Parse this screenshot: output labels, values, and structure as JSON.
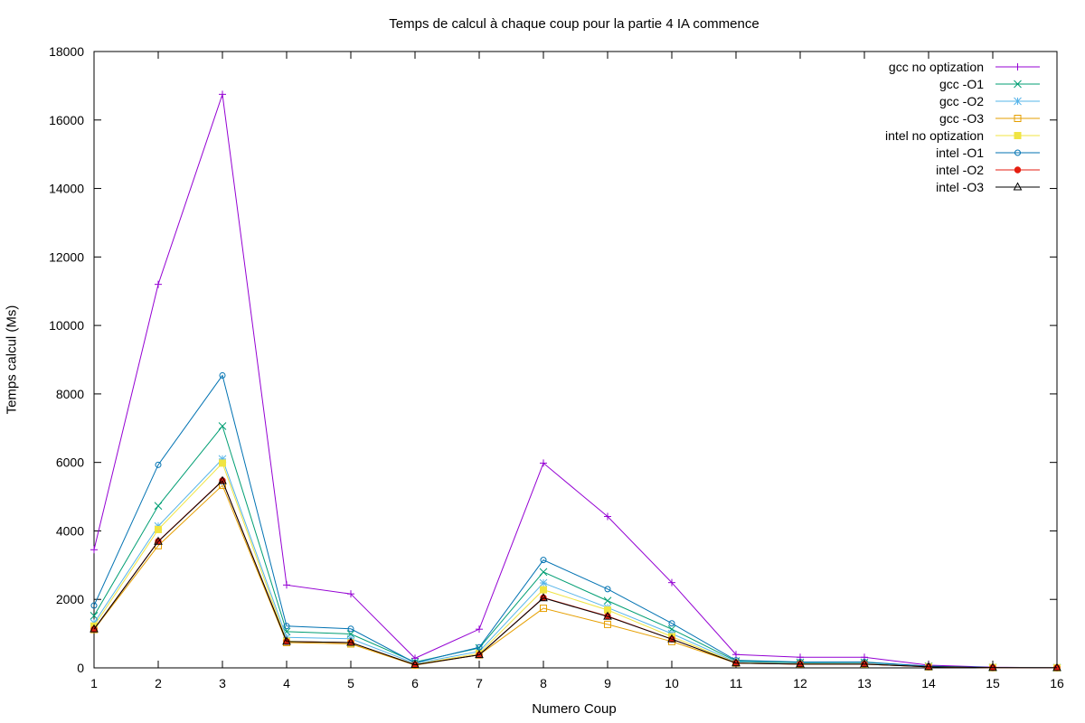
{
  "chart_data": {
    "type": "line",
    "title": "Temps de calcul à chaque coup pour la partie 4 IA commence",
    "xlabel": "Numero Coup",
    "ylabel": "Temps calcul (Ms)",
    "xlim": [
      1,
      16
    ],
    "ylim": [
      0,
      18000
    ],
    "xticks": [
      1,
      2,
      3,
      4,
      5,
      6,
      7,
      8,
      9,
      10,
      11,
      12,
      13,
      14,
      15,
      16
    ],
    "yticks": [
      0,
      2000,
      4000,
      6000,
      8000,
      10000,
      12000,
      14000,
      16000,
      18000
    ],
    "grid": false,
    "legend_position": "top-right",
    "x": [
      1,
      2,
      3,
      4,
      5,
      6,
      7,
      8,
      9,
      10,
      11,
      12,
      13,
      14,
      15,
      16
    ],
    "series": [
      {
        "name": "gcc no optization",
        "color": "#9400d3",
        "marker": "plus",
        "values": [
          3450,
          11200,
          16750,
          2420,
          2160,
          280,
          1130,
          5980,
          4420,
          2490,
          390,
          310,
          310,
          80,
          20,
          5
        ]
      },
      {
        "name": "gcc -O1",
        "color": "#009e73",
        "marker": "cross",
        "values": [
          1520,
          4730,
          7060,
          1060,
          990,
          170,
          580,
          2800,
          1960,
          1130,
          200,
          160,
          160,
          50,
          10,
          3
        ]
      },
      {
        "name": "gcc -O2",
        "color": "#56b4e9",
        "marker": "star",
        "values": [
          1310,
          4140,
          6100,
          890,
          850,
          130,
          480,
          2480,
          1760,
          1000,
          170,
          130,
          120,
          40,
          10,
          3
        ]
      },
      {
        "name": "gcc -O3",
        "color": "#e69f00",
        "marker": "square",
        "values": [
          1120,
          3570,
          5330,
          740,
          700,
          80,
          380,
          1740,
          1270,
          770,
          140,
          110,
          110,
          30,
          8,
          2
        ]
      },
      {
        "name": "intel no optization",
        "color": "#f0e442",
        "marker": "square-filled",
        "values": [
          1220,
          4040,
          5980,
          780,
          730,
          100,
          420,
          2280,
          1690,
          910,
          150,
          120,
          110,
          35,
          9,
          2
        ]
      },
      {
        "name": "intel -O1",
        "color": "#0072b2",
        "marker": "circle",
        "values": [
          1820,
          5930,
          8540,
          1220,
          1140,
          150,
          600,
          3150,
          2300,
          1300,
          220,
          170,
          170,
          50,
          12,
          3
        ]
      },
      {
        "name": "intel -O2",
        "color": "#e51e10",
        "marker": "circle-filled",
        "values": [
          1130,
          3700,
          5470,
          770,
          740,
          90,
          380,
          2050,
          1510,
          840,
          140,
          110,
          110,
          30,
          8,
          2
        ]
      },
      {
        "name": "intel -O3",
        "color": "#000000",
        "marker": "triangle",
        "values": [
          1130,
          3690,
          5460,
          770,
          740,
          90,
          380,
          2040,
          1500,
          840,
          140,
          110,
          110,
          30,
          8,
          2
        ]
      }
    ]
  }
}
